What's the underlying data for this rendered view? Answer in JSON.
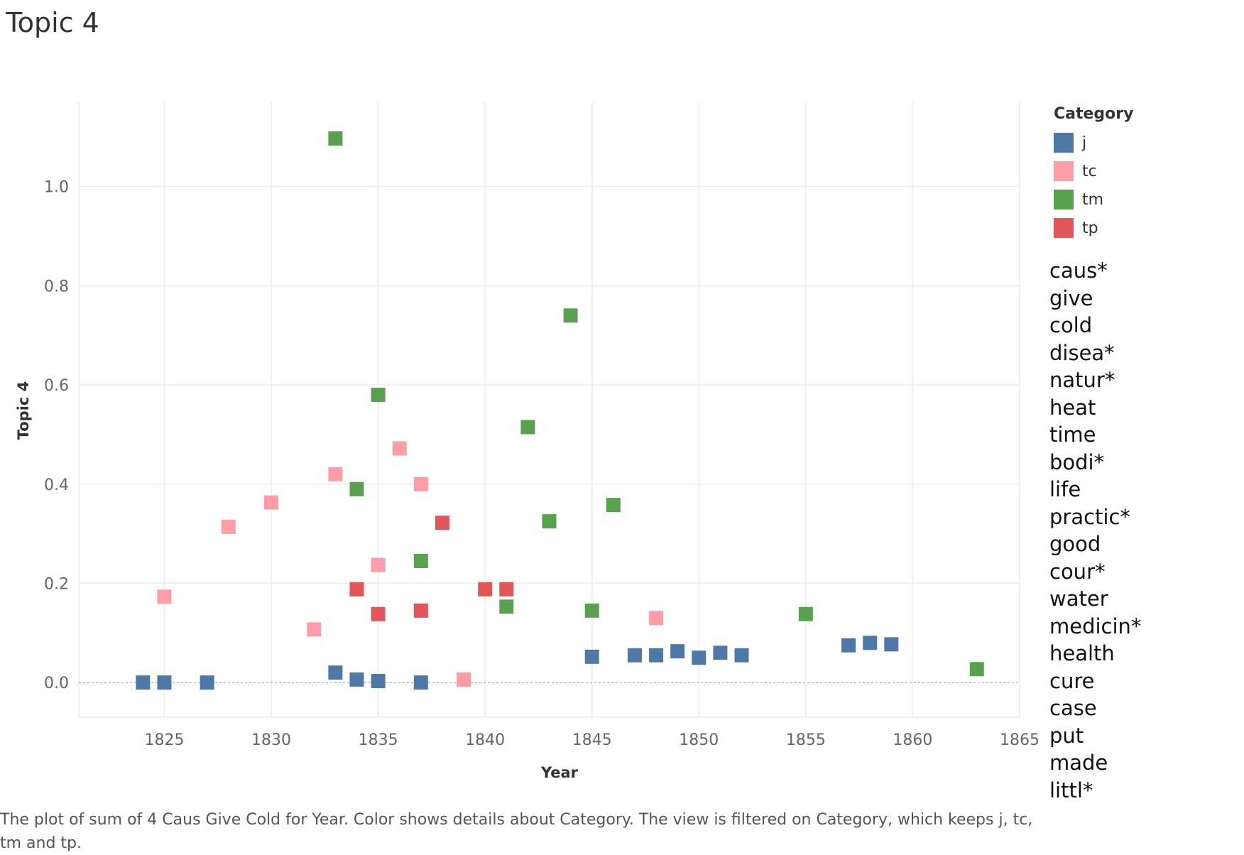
{
  "title": "Topic 4",
  "chart_data": {
    "type": "scatter",
    "xlabel": "Year",
    "ylabel": "Topic 4",
    "xlim": [
      1821,
      1865
    ],
    "ylim": [
      -0.07,
      1.17
    ],
    "x_ticks": [
      1825,
      1830,
      1835,
      1840,
      1845,
      1850,
      1855,
      1860,
      1865
    ],
    "y_ticks": [
      0.0,
      0.2,
      0.4,
      0.6,
      0.8,
      1.0
    ],
    "y_tick_labels": [
      "0.0",
      "0.2",
      "0.4",
      "0.6",
      "0.8",
      "1.0"
    ],
    "grid": true,
    "reference_line_y": 0.0,
    "legend": {
      "title": "Category",
      "placement": "right",
      "entries": [
        "j",
        "tc",
        "tm",
        "tp"
      ]
    },
    "series": [
      {
        "name": "j",
        "color": "#4e79a7",
        "points": [
          [
            1824,
            0.0
          ],
          [
            1825,
            0.0
          ],
          [
            1827,
            0.0
          ],
          [
            1833,
            0.02
          ],
          [
            1834,
            0.006
          ],
          [
            1835,
            0.003
          ],
          [
            1837,
            0.0
          ],
          [
            1845,
            0.052
          ],
          [
            1847,
            0.055
          ],
          [
            1848,
            0.055
          ],
          [
            1849,
            0.063
          ],
          [
            1850,
            0.05
          ],
          [
            1851,
            0.06
          ],
          [
            1852,
            0.055
          ],
          [
            1857,
            0.075
          ],
          [
            1858,
            0.08
          ],
          [
            1859,
            0.077
          ]
        ]
      },
      {
        "name": "tc",
        "color": "#ff9da7",
        "points": [
          [
            1825,
            0.173
          ],
          [
            1828,
            0.314
          ],
          [
            1830,
            0.363
          ],
          [
            1832,
            0.107
          ],
          [
            1833,
            0.42
          ],
          [
            1835,
            0.237
          ],
          [
            1836,
            0.472
          ],
          [
            1837,
            0.4
          ],
          [
            1839,
            0.006
          ],
          [
            1848,
            0.13
          ]
        ]
      },
      {
        "name": "tm",
        "color": "#59a14f",
        "points": [
          [
            1833,
            1.097
          ],
          [
            1834,
            0.39
          ],
          [
            1835,
            0.58
          ],
          [
            1837,
            0.245
          ],
          [
            1841,
            0.153
          ],
          [
            1842,
            0.515
          ],
          [
            1843,
            0.325
          ],
          [
            1844,
            0.74
          ],
          [
            1845,
            0.145
          ],
          [
            1846,
            0.358
          ],
          [
            1855,
            0.138
          ],
          [
            1863,
            0.027
          ]
        ]
      },
      {
        "name": "tp",
        "color": "#e15759",
        "points": [
          [
            1834,
            0.188
          ],
          [
            1835,
            0.138
          ],
          [
            1837,
            0.145
          ],
          [
            1838,
            0.322
          ],
          [
            1840,
            0.188
          ],
          [
            1841,
            0.188
          ]
        ]
      }
    ]
  },
  "word_list": [
    "caus*",
    "give",
    "cold",
    "disea*",
    "natur*",
    "heat",
    "time",
    "bodi*",
    "life",
    "practic*",
    "good",
    "cour*",
    "water",
    "medicin*",
    "health",
    "cure",
    "case",
    "put",
    "made",
    "littl*"
  ],
  "caption": "The plot of sum of 4 Caus Give Cold for Year.  Color shows details about Category. The view is filtered on Category, which keeps j, tc, tm and tp."
}
